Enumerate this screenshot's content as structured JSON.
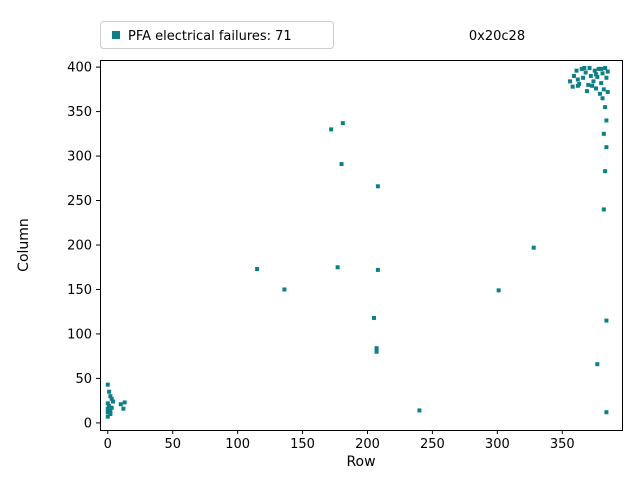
{
  "figure": {
    "background": "#ffffff",
    "annotation": "0x20c28",
    "marker_color": "#0e7f86",
    "legend_edge_color": "#cccccc",
    "axis_color": "#000000"
  },
  "chart_data": {
    "type": "scatter",
    "title": "",
    "xlabel": "Row",
    "ylabel": "Column",
    "xlim": [
      -6,
      396
    ],
    "ylim": [
      -8,
      408
    ],
    "xticks": [
      0,
      50,
      100,
      150,
      200,
      250,
      300,
      350
    ],
    "yticks": [
      0,
      50,
      100,
      150,
      200,
      250,
      300,
      350,
      400
    ],
    "grid": false,
    "legend": {
      "label": "PFA electrical failures: 71",
      "position": "upper left",
      "marker": "square"
    },
    "series": [
      {
        "name": "PFA electrical failures",
        "count": 71,
        "marker": "square",
        "color": "#0e7f86",
        "points": [
          [
            0,
            43
          ],
          [
            1,
            35
          ],
          [
            2,
            30
          ],
          [
            3,
            27
          ],
          [
            4,
            24
          ],
          [
            0,
            22
          ],
          [
            1,
            19
          ],
          [
            3,
            17
          ],
          [
            0,
            16
          ],
          [
            2,
            13
          ],
          [
            0,
            12
          ],
          [
            2,
            10
          ],
          [
            0,
            7
          ],
          [
            10,
            21
          ],
          [
            13,
            23
          ],
          [
            12,
            16
          ],
          [
            115,
            173
          ],
          [
            136,
            150
          ],
          [
            172,
            330
          ],
          [
            181,
            337
          ],
          [
            180,
            291
          ],
          [
            177,
            175
          ],
          [
            208,
            266
          ],
          [
            208,
            172
          ],
          [
            205,
            118
          ],
          [
            207,
            84
          ],
          [
            207,
            80
          ],
          [
            240,
            14
          ],
          [
            301,
            149
          ],
          [
            328,
            197
          ],
          [
            356,
            384
          ],
          [
            358,
            378
          ],
          [
            359,
            390
          ],
          [
            361,
            396
          ],
          [
            362,
            386
          ],
          [
            363,
            381
          ],
          [
            365,
            398
          ],
          [
            366,
            388
          ],
          [
            367,
            399
          ],
          [
            368,
            394
          ],
          [
            369,
            373
          ],
          [
            370,
            380
          ],
          [
            371,
            399
          ],
          [
            372,
            390
          ],
          [
            373,
            379
          ],
          [
            374,
            384
          ],
          [
            375,
            396
          ],
          [
            376,
            376
          ],
          [
            377,
            389
          ],
          [
            378,
            398
          ],
          [
            379,
            370
          ],
          [
            380,
            382
          ],
          [
            380,
            398
          ],
          [
            381,
            393
          ],
          [
            381,
            365
          ],
          [
            382,
            375
          ],
          [
            383,
            399
          ],
          [
            384,
            388
          ],
          [
            385,
            395
          ],
          [
            385,
            372
          ],
          [
            376,
            392
          ],
          [
            362,
            379
          ],
          [
            383,
            355
          ],
          [
            384,
            340
          ],
          [
            382,
            325
          ],
          [
            384,
            310
          ],
          [
            383,
            283
          ],
          [
            382,
            240
          ],
          [
            384,
            115
          ],
          [
            377,
            66
          ],
          [
            384,
            12
          ]
        ]
      }
    ]
  }
}
